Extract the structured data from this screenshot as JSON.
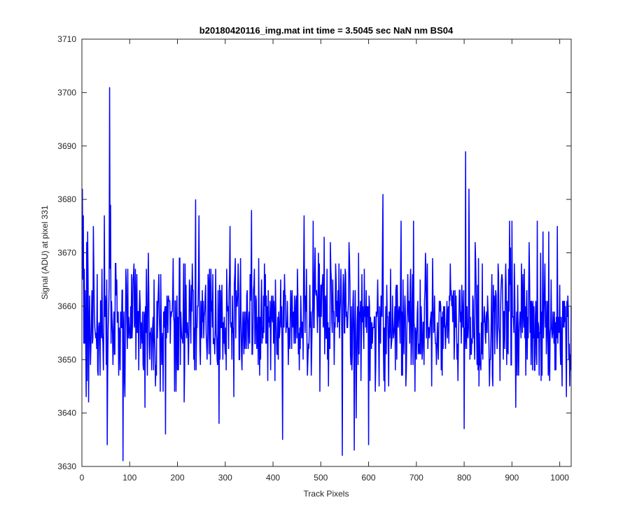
{
  "chart_data": {
    "type": "line",
    "title": "b20180420116_img.mat int time = 3.5045 sec  NaN nm BS04",
    "xlabel": "Track Pixels",
    "ylabel": "Signal (ADU) at pixel 331",
    "xlim": [
      0,
      1024
    ],
    "ylim": [
      3630,
      3710
    ],
    "xticks": [
      0,
      100,
      200,
      300,
      400,
      500,
      600,
      700,
      800,
      900,
      1000
    ],
    "yticks": [
      3630,
      3640,
      3650,
      3660,
      3670,
      3680,
      3690,
      3700,
      3710
    ],
    "xtick_labels": [
      "0",
      "100",
      "200",
      "300",
      "400",
      "500",
      "600",
      "700",
      "800",
      "900",
      "1000"
    ],
    "ytick_labels": [
      "3630",
      "3640",
      "3650",
      "3660",
      "3670",
      "3680",
      "3690",
      "3700",
      "3710"
    ],
    "grid": false,
    "series": [
      {
        "color": "#0000ff",
        "x_start": 1,
        "x_step": 1,
        "mean": 3657,
        "std": 6,
        "count": 1024,
        "y_min": 3631,
        "y_max": 3701,
        "peaks": [
          {
            "x": 1,
            "y": 3682
          },
          {
            "x": 3,
            "y": 3677
          },
          {
            "x": 9,
            "y": 3643
          },
          {
            "x": 14,
            "y": 3642
          },
          {
            "x": 47,
            "y": 3677
          },
          {
            "x": 53,
            "y": 3634
          },
          {
            "x": 58,
            "y": 3701
          },
          {
            "x": 60,
            "y": 3679
          },
          {
            "x": 86,
            "y": 3631
          },
          {
            "x": 175,
            "y": 3636
          },
          {
            "x": 238,
            "y": 3680
          },
          {
            "x": 310,
            "y": 3675
          },
          {
            "x": 355,
            "y": 3678
          },
          {
            "x": 420,
            "y": 3635
          },
          {
            "x": 465,
            "y": 3677
          },
          {
            "x": 484,
            "y": 3676
          },
          {
            "x": 545,
            "y": 3632
          },
          {
            "x": 570,
            "y": 3633
          },
          {
            "x": 600,
            "y": 3634
          },
          {
            "x": 630,
            "y": 3681
          },
          {
            "x": 668,
            "y": 3676
          },
          {
            "x": 800,
            "y": 3637
          },
          {
            "x": 803,
            "y": 3689
          },
          {
            "x": 810,
            "y": 3682
          },
          {
            "x": 895,
            "y": 3676
          },
          {
            "x": 900,
            "y": 3676
          },
          {
            "x": 953,
            "y": 3676
          },
          {
            "x": 995,
            "y": 3675
          }
        ]
      }
    ]
  }
}
